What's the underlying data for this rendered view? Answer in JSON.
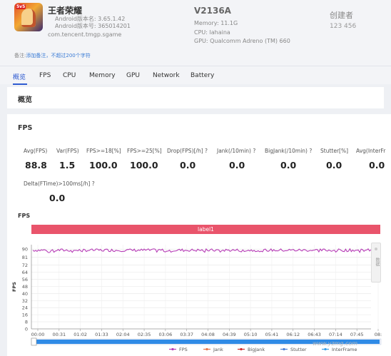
{
  "app": {
    "name": "王者荣耀",
    "version_name": "Android版本名: 3.65.1.42",
    "version_code": "Android版本号: 365014201",
    "package": "com.tencent.tmgp.sgame",
    "icon": "game-hero-icon",
    "icon_badge": "5v5"
  },
  "device": {
    "name": "V2136A",
    "memory": "Memory: 11.1G",
    "cpu": "CPU: lahaina",
    "gpu": "GPU: Qualcomm Adreno (TM) 660"
  },
  "creator": {
    "label": "创建者",
    "id": "123 456"
  },
  "note": {
    "label": "备注:",
    "placeholder": "添加备注，不超过200个字符"
  },
  "tabs": [
    {
      "label": "概览",
      "active": true
    },
    {
      "label": "FPS"
    },
    {
      "label": "CPU"
    },
    {
      "label": "Memory"
    },
    {
      "label": "GPU"
    },
    {
      "label": "Network"
    },
    {
      "label": "Battery"
    }
  ],
  "overview_title": "概览",
  "fps_section": {
    "title": "FPS",
    "metrics": [
      {
        "label": "Avg(FPS)",
        "value": "88.8"
      },
      {
        "label": "Var(FPS)",
        "value": "1.5"
      },
      {
        "label": "FPS>=18[%]",
        "value": "100.0"
      },
      {
        "label": "FPS>=25[%]",
        "value": "100.0"
      },
      {
        "label": "Drop(FPS)[/h]",
        "value": "0.0"
      },
      {
        "label": "Jank(/10min)",
        "value": "0.0"
      },
      {
        "label": "BigJank(/10min)",
        "value": "0.0"
      },
      {
        "label": "Stutter[%]",
        "value": "0.0"
      },
      {
        "label": "Avg(InterFr",
        "value": "0.0"
      },
      {
        "label": "Delta(FTime)>100ms[/h]",
        "value": "0.0"
      }
    ],
    "help_glyph": "?"
  },
  "chart_data": {
    "type": "line",
    "title": "FPS",
    "label_bar": "label1",
    "ylabel": "FPS",
    "ylim": [
      0,
      95
    ],
    "yticks": [
      0,
      8,
      16,
      24,
      32,
      40,
      48,
      56,
      64,
      72,
      81,
      90
    ],
    "xticks": [
      "00:00",
      "00:31",
      "01:02",
      "01:33",
      "02:04",
      "02:35",
      "03:06",
      "03:37",
      "04:08",
      "04:39",
      "05:10",
      "05:41",
      "06:12",
      "06:43",
      "07:14",
      "07:45",
      "08:"
    ],
    "series": [
      {
        "name": "FPS",
        "color": "#b63cb6",
        "approx_mean": 88.8,
        "range": [
          86,
          91
        ]
      }
    ],
    "legend": [
      "FPS",
      "Jank",
      "BigJank",
      "Stutter",
      "InterFrame"
    ],
    "legend_colors": [
      "#b63cb6",
      "#e8744a",
      "#d02a2a",
      "#4a7fd6",
      "#3aa0e8"
    ],
    "legend_position": "bottom"
  },
  "side_panel_label": "数据",
  "watermark": "www.yzmg.com"
}
